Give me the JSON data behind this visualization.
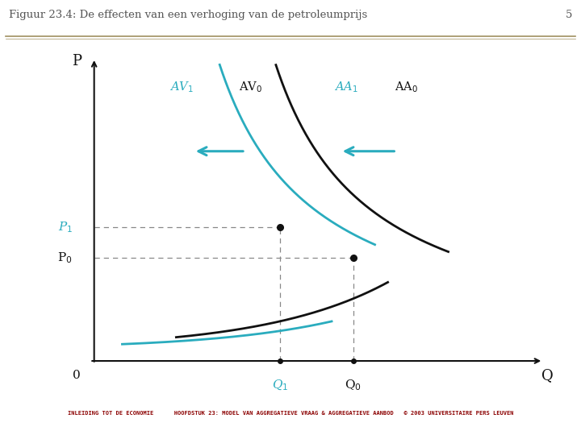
{
  "title": "Figuur 23.4: De effecten van een verhoging van de petroleumprijs",
  "page_number": "5",
  "xlabel": "Q",
  "ylabel": "P",
  "origin_label": "0",
  "bg_color": "#ffffff",
  "title_color": "#555555",
  "black_color": "#111111",
  "blue_color": "#2aacbe",
  "separator_color": "#a09060",
  "footer_color": "#8B0000",
  "footer_text": "INLEIDING TOT DE ECONOMIE      HOOFDSTUK 23: MODEL VAN AGGREGATIEVE VRAAG & AGGREGATIEVE AANBOD   © 2003 UNIVERSITAIRE PERS LEUVEN",
  "label_AV0": "AV$_0$",
  "label_AV1": "AV$_1$",
  "label_AA0": "AA$_0$",
  "label_AA1": "AA$_1$",
  "label_P0": "P$_0$",
  "label_P1": "P$_1$",
  "label_Q0": "Q$_0$",
  "label_Q1": "Q$_1$",
  "P0": 0.355,
  "P1": 0.46,
  "Q0": 0.6,
  "Q1": 0.43
}
